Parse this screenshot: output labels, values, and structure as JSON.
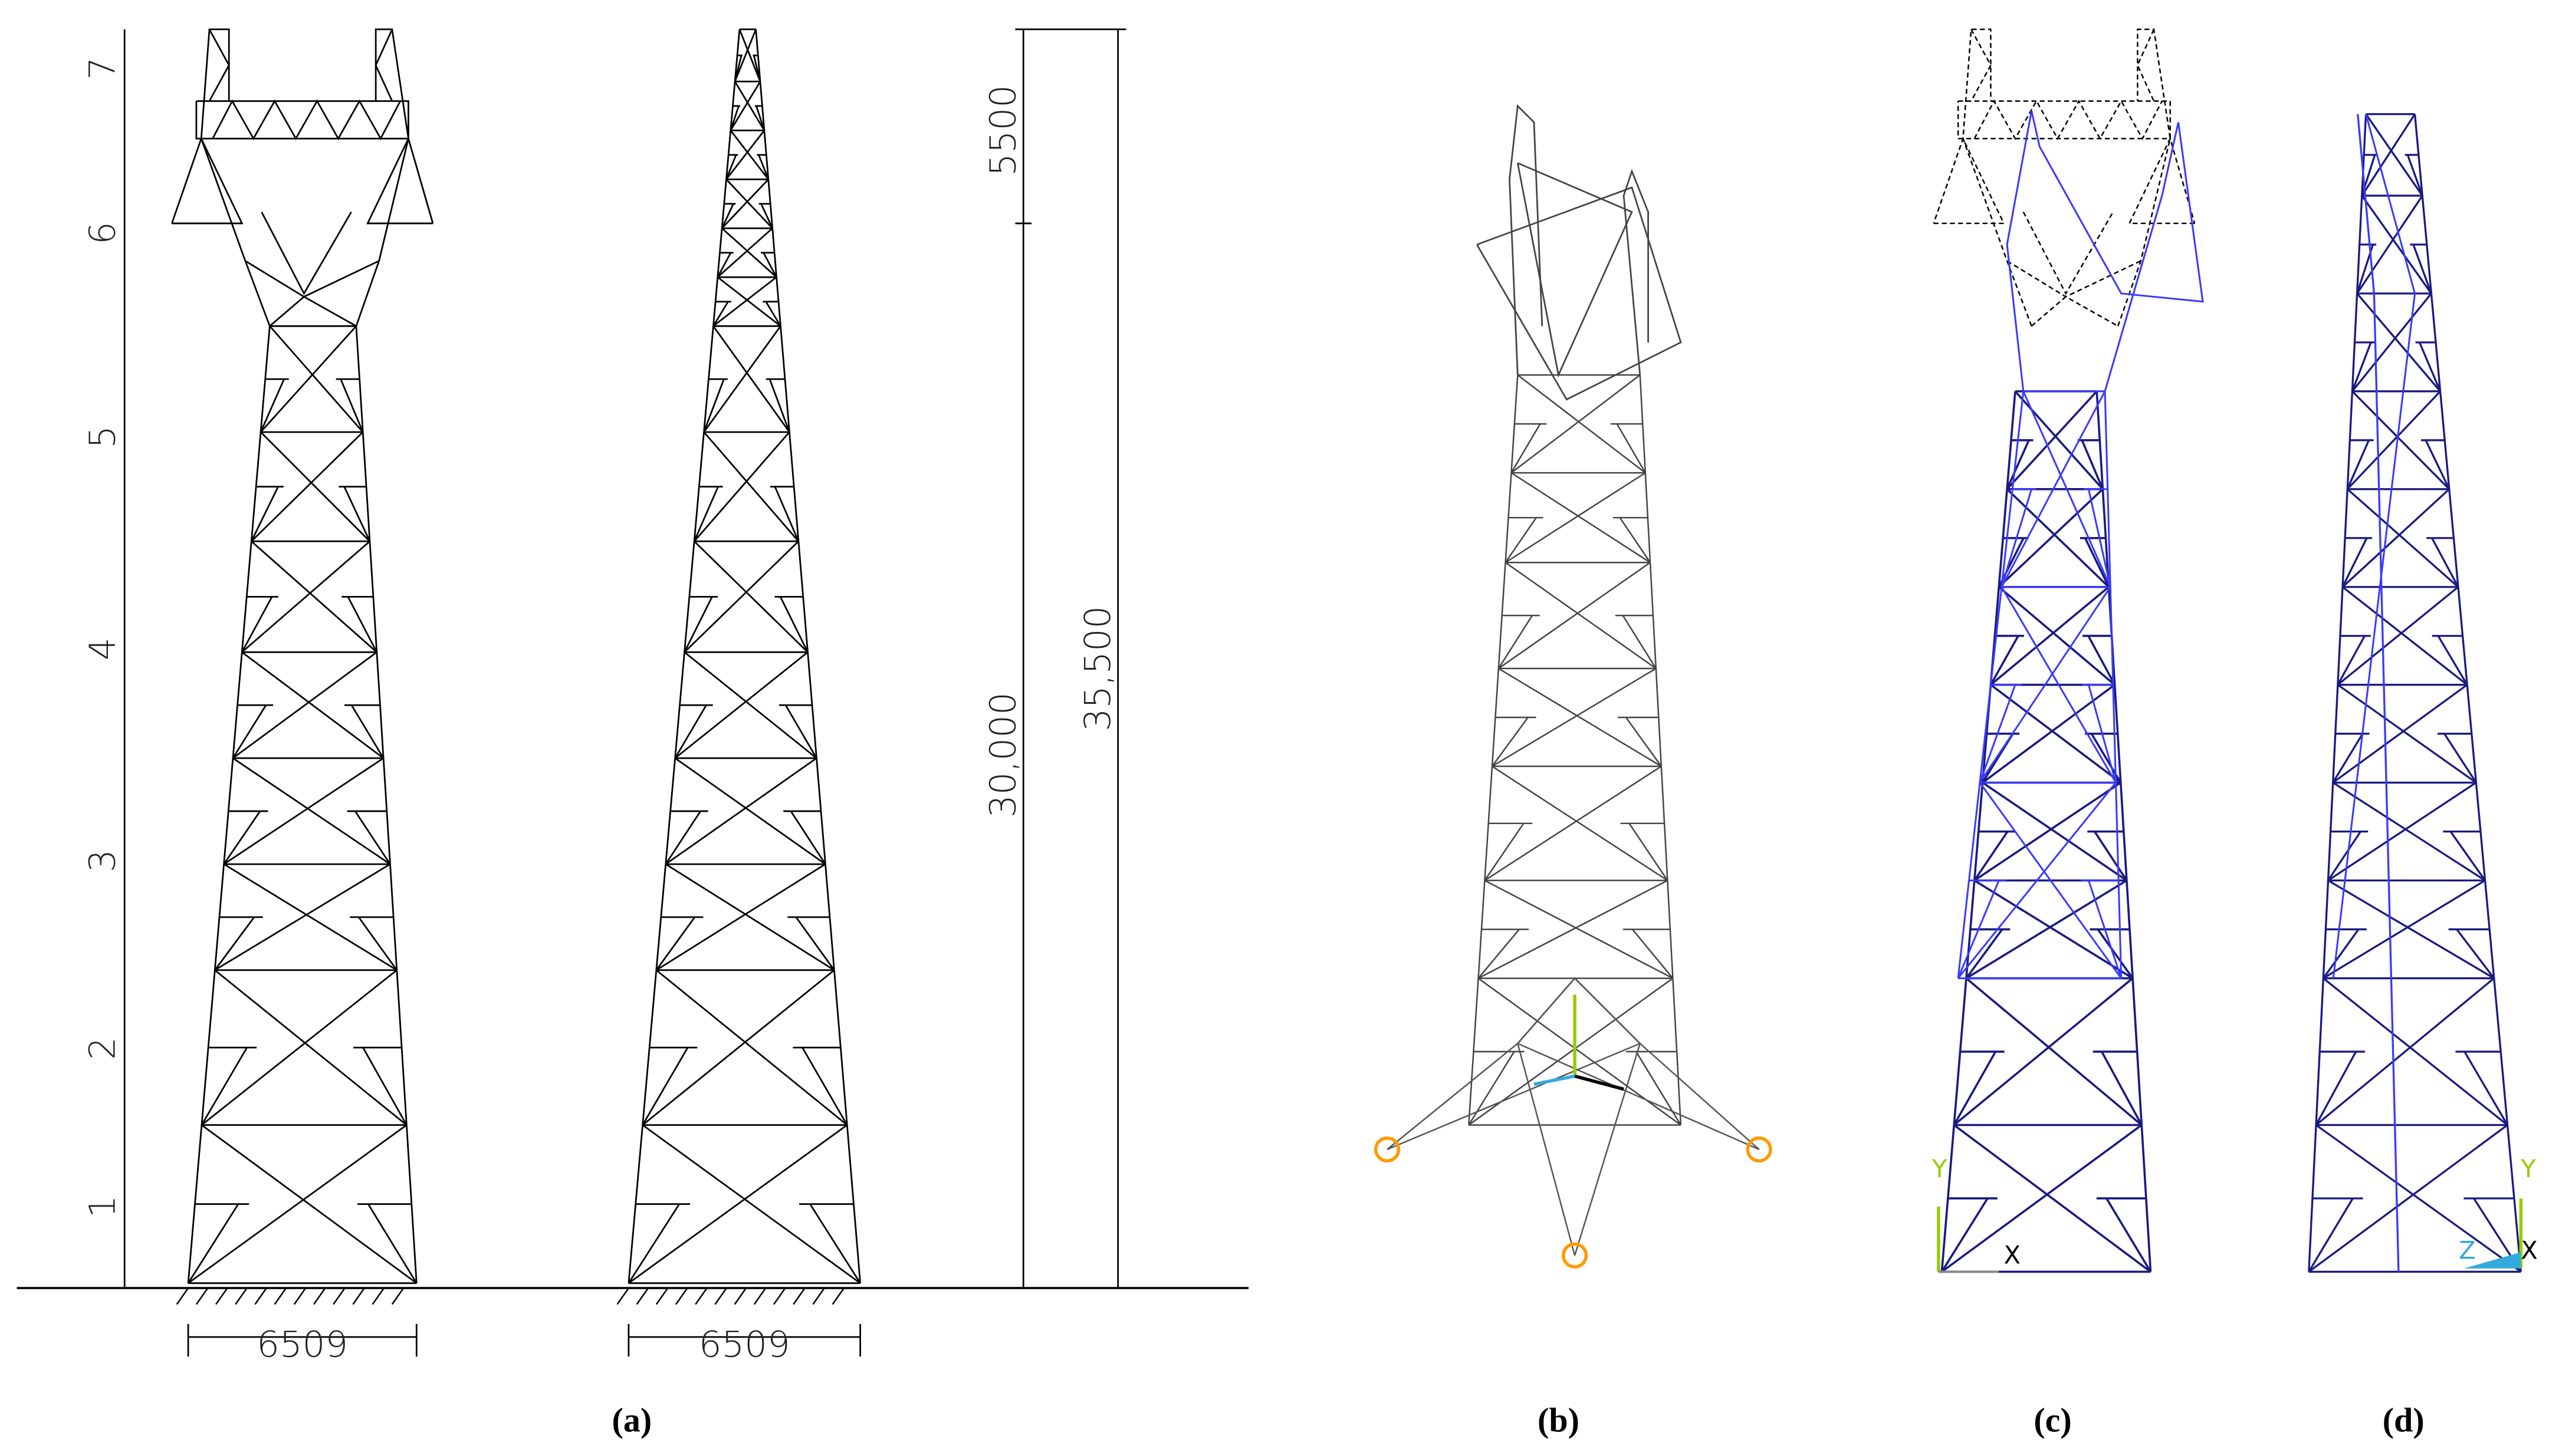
{
  "panel_a": {
    "segment_labels": [
      "1",
      "2",
      "3",
      "4",
      "5",
      "6",
      "7"
    ],
    "base_widths": [
      "6509",
      "6509"
    ],
    "heights": [
      "5500",
      "30,000",
      "35,500"
    ]
  },
  "captions": [
    "(a)",
    "(b)",
    "(c)",
    "(d)"
  ],
  "axis_labels_c": [
    "Y",
    "X"
  ],
  "axis_labels_d": [
    "Y",
    "Z",
    "X"
  ]
}
